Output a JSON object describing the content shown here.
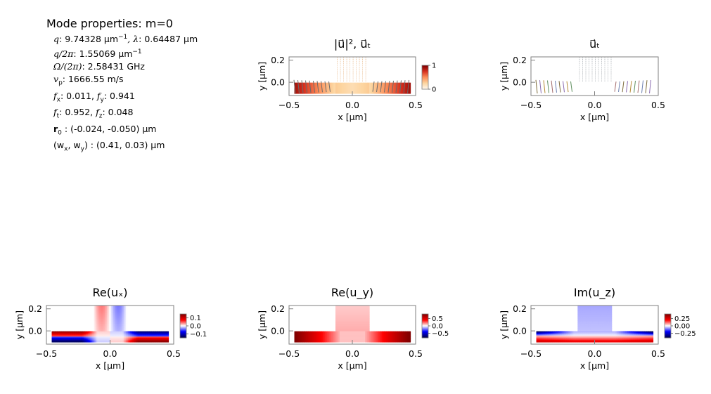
{
  "info": {
    "title": "Mode properties: m=0",
    "q_label": "q",
    "q_value": ": 9.74328 µm",
    "q_exp": "−1",
    "lambda_label": ", λ",
    "lambda_value": ":  0.64487 µm",
    "q2pi_label": "q/2π",
    "q2pi_value": ": 1.55069 µm",
    "q2pi_exp": "−1",
    "omega_label": "Ω/(2π)",
    "omega_value": ": 2.58431 GHz",
    "vp_label": "v",
    "vp_sub": "p",
    "vp_value": ": 1666.55 m/s",
    "fx_label": "f",
    "fx_sub": "x",
    "fx_value": ":  0.011, ",
    "fy_label": "f",
    "fy_sub": "y",
    "fy_value": ": 0.941",
    "ft_label": "f",
    "ft_sub": "t",
    "ft_value": ":  0.952, ",
    "fz_label": "f",
    "fz_sub": "z",
    "fz_value": ": 0.048",
    "r0_label": "r",
    "r0_sub": "0",
    "r0_value": " :  (-0.024, -0.050) µm",
    "w_label": "(w",
    "w_sub1": "x",
    "w_mid": ", w",
    "w_sub2": "y",
    "w_value": ") :  (0.41, 0.03) µm"
  },
  "chart_data": [
    {
      "type": "heatmap",
      "id": "intensity",
      "title": "|u⃗|², u⃗ₜ",
      "xlabel": "x [µm]",
      "ylabel": "y [µm]",
      "xlim": [
        -0.5,
        0.5
      ],
      "ylim": [
        -0.12,
        0.23
      ],
      "xticks": [
        "−0.5",
        "0.0",
        "0.5"
      ],
      "yticks": [
        "0.0",
        "0.2"
      ],
      "colormap": "OrRd",
      "colorbar": {
        "min": 0,
        "max": 1,
        "ticks": [
          "0",
          "1"
        ]
      },
      "arrows": true,
      "show_colorbar": true
    },
    {
      "type": "heatmap",
      "id": "transverse",
      "title": "u⃗ₜ",
      "xlabel": "x [µm]",
      "ylabel": "y [µm]",
      "xlim": [
        -0.5,
        0.5
      ],
      "ylim": [
        -0.12,
        0.23
      ],
      "xticks": [
        "−0.5",
        "0.0",
        "0.5"
      ],
      "yticks": [
        "0.0",
        "0.2"
      ],
      "arrows": true,
      "show_colorbar": false
    },
    {
      "type": "heatmap",
      "id": "re_ux",
      "title": "Re(uₓ)",
      "xlabel": "x [µm]",
      "ylabel": "y [µm]",
      "xlim": [
        -0.5,
        0.5
      ],
      "ylim": [
        -0.12,
        0.23
      ],
      "xticks": [
        "−0.5",
        "0.0",
        "0.5"
      ],
      "yticks": [
        "0.0",
        "0.2"
      ],
      "colormap": "seismic",
      "colorbar": {
        "min": -0.15,
        "max": 0.15,
        "ticks": [
          "0.1",
          "0.0",
          "−0.1"
        ]
      },
      "show_colorbar": true
    },
    {
      "type": "heatmap",
      "id": "re_uy",
      "title": "Re(u_y)",
      "xlabel": "x [µm]",
      "ylabel": "y [µm]",
      "xlim": [
        -0.5,
        0.5
      ],
      "ylim": [
        -0.12,
        0.23
      ],
      "xticks": [
        "−0.5",
        "0.0",
        "0.5"
      ],
      "yticks": [
        "0.0",
        "0.2"
      ],
      "colormap": "seismic",
      "colorbar": {
        "min": -0.8,
        "max": 0.8,
        "ticks": [
          "0.5",
          "0.0",
          "−0.5"
        ]
      },
      "show_colorbar": true
    },
    {
      "type": "heatmap",
      "id": "im_uz",
      "title": "Im(u_z)",
      "xlabel": "x [µm]",
      "ylabel": "y [µm]",
      "xlim": [
        -0.5,
        0.5
      ],
      "ylim": [
        -0.12,
        0.23
      ],
      "xticks": [
        "−0.5",
        "0.0",
        "0.5"
      ],
      "yticks": [
        "0.0",
        "0.2"
      ],
      "colormap": "seismic",
      "colorbar": {
        "min": -0.4,
        "max": 0.4,
        "ticks": [
          "0.25",
          "0.00",
          "−0.25"
        ]
      },
      "show_colorbar": true
    }
  ]
}
